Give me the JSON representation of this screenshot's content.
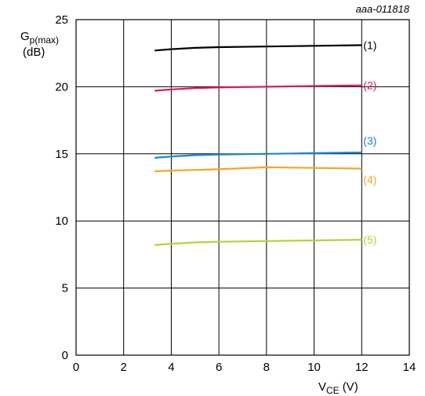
{
  "chart_data": {
    "type": "line",
    "figure_code": "aaa-011818",
    "ylabel": {
      "main": "G",
      "sub": "p(max)",
      "unit": "(dB)"
    },
    "xlabel": {
      "main": "V",
      "sub": "CE",
      "unit": "(V)"
    },
    "xlim": [
      0,
      14
    ],
    "ylim": [
      0,
      25
    ],
    "xticks": [
      "0",
      "2",
      "4",
      "6",
      "8",
      "10",
      "12",
      "14"
    ],
    "yticks": [
      "0",
      "5",
      "10",
      "15",
      "20",
      "25"
    ],
    "grid": true,
    "series": [
      {
        "label": "(1)",
        "color": "#000000",
        "x": [
          3.3,
          4,
          5,
          6,
          8,
          10,
          12
        ],
        "y": [
          22.7,
          22.8,
          22.9,
          22.95,
          23.0,
          23.05,
          23.1
        ],
        "label_color": "#000000"
      },
      {
        "label": "(2)",
        "color": "#e2185b",
        "x": [
          3.3,
          4,
          5,
          6,
          8,
          10,
          12
        ],
        "y": [
          19.7,
          19.8,
          19.9,
          19.95,
          20.0,
          20.05,
          20.1
        ],
        "label_color": "#e2185b"
      },
      {
        "label": "(3)",
        "color": "#1a86c8",
        "x": [
          3.3,
          4,
          5,
          6,
          8,
          10,
          12
        ],
        "y": [
          14.7,
          14.8,
          14.9,
          14.95,
          15.0,
          15.05,
          15.1
        ],
        "label_color": "#1a86c8"
      },
      {
        "label": "(4)",
        "color": "#f5a623",
        "x": [
          3.3,
          4,
          5,
          6,
          8,
          10,
          12
        ],
        "y": [
          13.7,
          13.75,
          13.8,
          13.85,
          14.0,
          13.95,
          13.9
        ],
        "label_color": "#f5a623"
      },
      {
        "label": "(5)",
        "color": "#b5d334",
        "x": [
          3.3,
          4,
          5,
          6,
          8,
          10,
          12
        ],
        "y": [
          8.2,
          8.3,
          8.4,
          8.45,
          8.5,
          8.55,
          8.6
        ],
        "label_color": "#b5d334"
      }
    ]
  }
}
